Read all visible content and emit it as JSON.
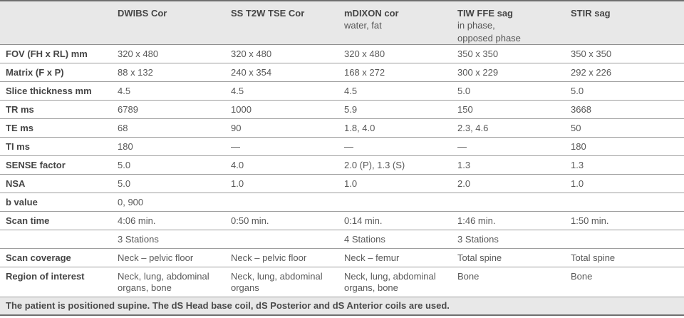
{
  "table": {
    "columns": [
      {
        "title": "DWIBS Cor",
        "subtitle": ""
      },
      {
        "title": "SS T2W TSE Cor",
        "subtitle": ""
      },
      {
        "title": "mDIXON cor",
        "subtitle": "water, fat"
      },
      {
        "title": "TIW FFE sag",
        "subtitle": "in phase,\nopposed phase"
      },
      {
        "title": "STIR sag",
        "subtitle": ""
      }
    ],
    "rows": [
      {
        "label": "FOV (FH x RL) mm",
        "values": [
          "320 x 480",
          "320 x 480",
          "320 x 480",
          "350 x 350",
          "350 x 350"
        ]
      },
      {
        "label": "Matrix (F x P)",
        "values": [
          "88 x 132",
          "240 x 354",
          "168 x 272",
          "300 x 229",
          "292 x 226"
        ]
      },
      {
        "label": "Slice thickness mm",
        "values": [
          "4.5",
          "4.5",
          "4.5",
          "5.0",
          "5.0"
        ]
      },
      {
        "label": "TR ms",
        "values": [
          "6789",
          "1000",
          "5.9",
          "150",
          "3668"
        ]
      },
      {
        "label": "TE ms",
        "values": [
          "68",
          "90",
          "1.8, 4.0",
          "2.3, 4.6",
          "50"
        ]
      },
      {
        "label": "TI ms",
        "values": [
          "180",
          "—",
          "—",
          "—",
          "180"
        ]
      },
      {
        "label": "SENSE factor",
        "values": [
          "5.0",
          "4.0",
          "2.0 (P), 1.3 (S)",
          "1.3",
          "1.3"
        ]
      },
      {
        "label": "NSA",
        "values": [
          "5.0",
          "1.0",
          "1.0",
          "2.0",
          "1.0"
        ]
      },
      {
        "label": "b value",
        "values": [
          "0, 900",
          "",
          "",
          "",
          ""
        ]
      },
      {
        "label": "Scan time",
        "values": [
          "4:06 min.",
          "0:50 min.",
          "0:14 min.",
          "1:46 min.",
          "1:50 min."
        ]
      },
      {
        "label": "",
        "values": [
          "3 Stations",
          "",
          "4 Stations",
          "3 Stations",
          ""
        ]
      },
      {
        "label": "Scan coverage",
        "values": [
          "Neck – pelvic floor",
          "Neck – pelvic floor",
          "Neck – femur",
          "Total spine",
          "Total spine"
        ]
      },
      {
        "label": "Region of interest",
        "values": [
          "Neck, lung, abdominal organs, bone",
          "Neck, lung, abdominal organs",
          "Neck, lung, abdominal organs, bone",
          "Bone",
          "Bone"
        ]
      }
    ],
    "footer_note": "The patient is positioned supine. The dS Head base coil, dS Posterior and dS Anterior coils are used.",
    "colors": {
      "header_bg": "#e8e8e8",
      "footer_bg": "#e8e8e8",
      "outer_border": "#6f6f6f",
      "row_line": "#9e9e9e",
      "label_text": "#454545",
      "value_text": "#585858"
    }
  }
}
